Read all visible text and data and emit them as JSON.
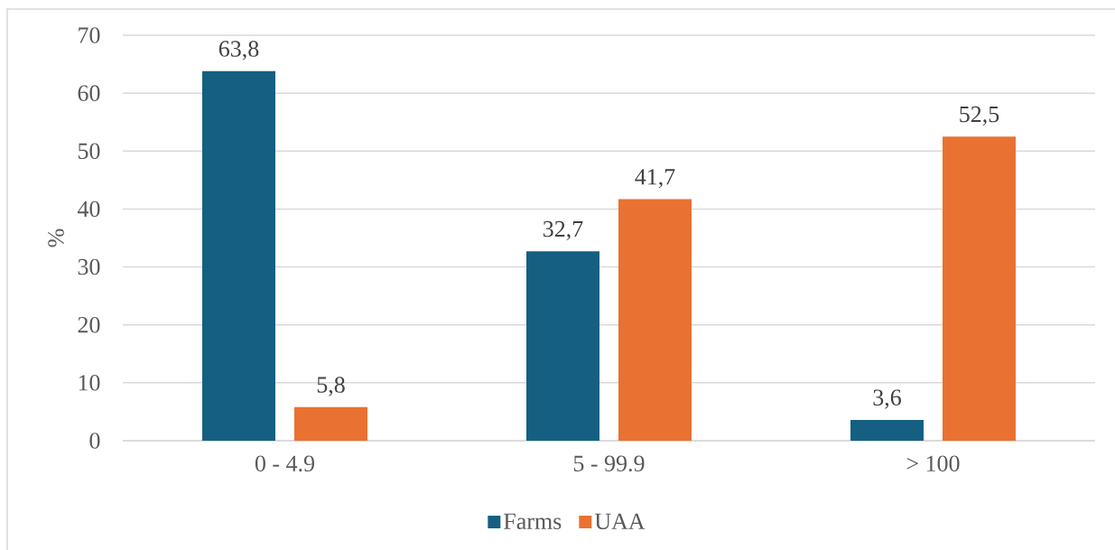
{
  "chart_data": {
    "type": "bar",
    "ylabel": "%",
    "categories": [
      "0 - 4.9",
      "5 - 99.9",
      "> 100"
    ],
    "series": [
      {
        "name": "Farms",
        "color": "#156082",
        "values": [
          63.8,
          32.7,
          3.6
        ],
        "value_labels": [
          "63,8",
          "32,7",
          "3,6"
        ]
      },
      {
        "name": "UAA",
        "color": "#E97132",
        "values": [
          5.8,
          41.7,
          52.5
        ],
        "value_labels": [
          "5,8",
          "41,7",
          "52,5"
        ]
      }
    ],
    "ylim": [
      0,
      70
    ],
    "yticks": [
      0,
      10,
      20,
      30,
      40,
      50,
      60,
      70
    ],
    "grid": "y",
    "legend": "bottom"
  }
}
